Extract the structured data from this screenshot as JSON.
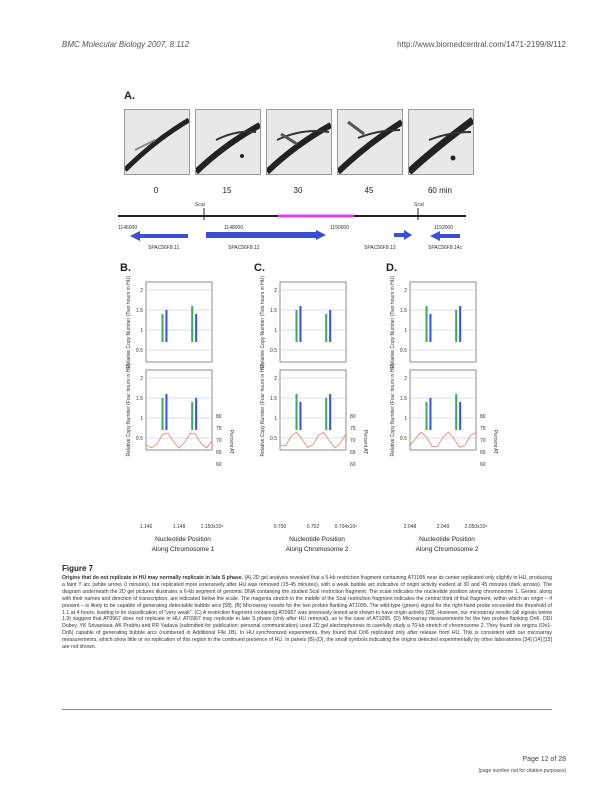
{
  "header": {
    "journal": "BMC Molecular Biology 2007, 8:112",
    "url": "http://www.biomedcentral.com/1471-2199/8/112"
  },
  "panels": {
    "a": "A.",
    "b": "B.",
    "c": "C.",
    "d": "D."
  },
  "time_points": [
    "0",
    "15",
    "30",
    "45",
    "60 min"
  ],
  "map": {
    "sites": [
      "Scal",
      "Scal"
    ],
    "coords": [
      "1146000",
      "1148000",
      "1150000",
      "1152000"
    ],
    "genes": [
      "SPAC56F8.11",
      "SPAC56F8.12",
      "SPAC56F8.13",
      "SPAC56F8.14c"
    ]
  },
  "plots": {
    "ylabel_top": "Relative Copy Number (Two hours in HU)",
    "ylabel_bottom": "Relative Copy Number (Four hours in HU)",
    "yticks": [
      "2",
      "1.5",
      "1",
      "0.5"
    ],
    "right_axis": "Percent AT",
    "right_ticks": [
      "80",
      "75",
      "70",
      "65",
      "60"
    ],
    "xlabel": "Nucleotide Position",
    "along": [
      "Along Chromosome 1",
      "Along Chromosome 2",
      "Along Chromosome 2"
    ],
    "x_ticks_b": [
      "1.146",
      "1.148",
      "1.150x10⁶"
    ],
    "x_ticks_c": [
      "0.700",
      "0.702",
      "0.704x10⁶"
    ],
    "x_ticks_d": [
      "2.048",
      "2.049",
      "2.050x10⁶"
    ]
  },
  "figure": {
    "title": "Figure 7",
    "caption_bold": "Origins that do not replicate in HU may normally replicate in late S phase.",
    "caption": "(A) 2D gel analysis revealed that a 5-kb restriction fragment containing AT1095 near its center replicated only slightly in HU, producing a faint Y arc (white arrow; 0 minutes), but replicated more extensively after HU was removed (15-45 minutes), with a weak bubble arc indicative of origin activity evident at 30 and 45 minutes (dark arrows). The diagram underneath the 2D gel pictures illustrates a 6-kb segment of genomic DNA containing the studied ScaI restriction fragment. The scale indicates the nucleotide position along chromosome 1. Genes, along with their names and direction of transcription, are indicated below the scale. The magenta stretch in the middle of the ScaI restriction fragment indicates the central third of that fragment, within which an origin – if present – is likely to be capable of generating detectable bubble arcs [58]. (B) Microarray results for the two probes flanking AT1095. The wild-type (green) signal for the right-hand probe exceeded the threshold of 1.1 at 4 hours, leading to its classification of \"very weak\". (C) A restriction fragment containing AT0967 was previously tested and shown to have origin activity [28]. However, our microarray results (all signals below 1.9) suggest that AT0967 does not replicate in HU. AT0967 may replicate in late S phase (only after HU removal), as is the case of AT1095. (D) Microarray measurements for the two probes flanking Ori6. ODI Dubey, YK Srivastava, AK Prabhu and PR Yadava (submitted for publication; personal communication) used 2D gel electrophoresis to carefully study a 70-kb stretch of chromosome 2. They found six origins (Ori1-Ori6) capable of generating bubble arcs (numbered in Additional File 1B). In HU synchronized experiments, they found that Ori6 replicated only after release from HU. This is consistent with our microarray measurements, which show little or no replication of this region in the continued presence of HU. In panels (B)-(D), the small symbols indicating the origins detected experimentally by other laboratories [34] [14] [15] are not shown."
  },
  "footer": {
    "page": "Page 12 of 28",
    "note": "(page number not for citation purposes)"
  },
  "colors": {
    "magenta": "#e040e0",
    "blue": "#3a50d0",
    "green": "#3aa860",
    "orange": "#e08060"
  }
}
